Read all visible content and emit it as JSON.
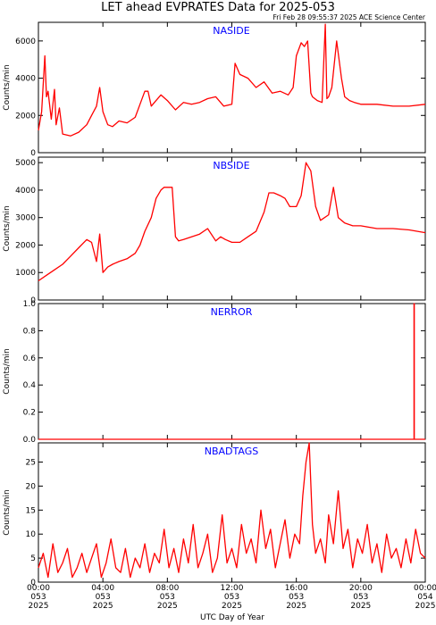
{
  "title": "LET ahead EVPRATES Data for 2025-053",
  "timestamp": "Fri Feb 28 09:55:37 2025 ACE Science Center",
  "xlabel": "UTC Day of Year",
  "x_ticks": [
    {
      "t": 0,
      "line1": "00:00",
      "line2": "053",
      "line3": "2025"
    },
    {
      "t": 4,
      "line1": "04:00",
      "line2": "053",
      "line3": "2025"
    },
    {
      "t": 8,
      "line1": "08:00",
      "line2": "053",
      "line3": "2025"
    },
    {
      "t": 12,
      "line1": "12:00",
      "line2": "053",
      "line3": "2025"
    },
    {
      "t": 16,
      "line1": "16:00",
      "line2": "053",
      "line3": "2025"
    },
    {
      "t": 20,
      "line1": "20:00",
      "line2": "053",
      "line3": "2025"
    },
    {
      "t": 24,
      "line1": "00:00",
      "line2": "054",
      "line3": "2025"
    }
  ],
  "colors": {
    "series": "#ff0000",
    "label": "#0000ff",
    "axis": "#000000"
  },
  "chart_data": [
    {
      "type": "line",
      "title": "NASIDE",
      "ylabel": "Counts/min",
      "xlim": [
        0,
        24
      ],
      "ylim": [
        0,
        7000
      ],
      "yticks": [
        0,
        2000,
        4000,
        6000
      ],
      "series": [
        {
          "x": [
            0,
            0.2,
            0.4,
            0.5,
            0.6,
            0.8,
            1.0,
            1.1,
            1.3,
            1.5,
            2.0,
            2.5,
            3.0,
            3.3,
            3.6,
            3.8,
            4.0,
            4.3,
            4.6,
            5.0,
            5.5,
            6.0,
            6.3,
            6.6,
            6.8,
            7.0,
            7.3,
            7.6,
            8.0,
            8.5,
            9.0,
            9.5,
            10.0,
            10.5,
            11.0,
            11.5,
            12.0,
            12.2,
            12.5,
            13.0,
            13.5,
            14.0,
            14.5,
            15.0,
            15.5,
            15.8,
            16.0,
            16.3,
            16.5,
            16.7,
            16.9,
            17.0,
            17.3,
            17.6,
            17.8,
            17.9,
            18.0,
            18.2,
            18.5,
            18.8,
            19.0,
            19.3,
            19.6,
            20.0,
            21.0,
            22.0,
            23.0,
            24.0
          ],
          "y": [
            1200,
            2200,
            5200,
            3000,
            3300,
            1800,
            3400,
            1500,
            2400,
            1000,
            900,
            1100,
            1500,
            2000,
            2500,
            3500,
            2200,
            1500,
            1400,
            1700,
            1600,
            1900,
            2600,
            3300,
            3300,
            2500,
            2800,
            3100,
            2800,
            2300,
            2700,
            2600,
            2700,
            2900,
            3000,
            2500,
            2600,
            4800,
            4200,
            4000,
            3500,
            3800,
            3200,
            3300,
            3100,
            3500,
            5200,
            5900,
            5700,
            6000,
            3200,
            3000,
            2800,
            2700,
            6900,
            2900,
            3000,
            3500,
            6000,
            4000,
            3000,
            2800,
            2700,
            2600,
            2600,
            2500,
            2500,
            2600
          ]
        }
      ]
    },
    {
      "type": "line",
      "title": "NBSIDE",
      "ylabel": "Counts/min",
      "xlim": [
        0,
        24
      ],
      "ylim": [
        0,
        5200
      ],
      "yticks": [
        0,
        1000,
        2000,
        3000,
        4000,
        5000
      ],
      "series": [
        {
          "x": [
            0,
            0.5,
            1.0,
            1.5,
            2.0,
            2.5,
            3.0,
            3.3,
            3.6,
            3.8,
            4.0,
            4.3,
            4.6,
            5.0,
            5.5,
            6.0,
            6.3,
            6.6,
            7.0,
            7.3,
            7.6,
            7.8,
            8.0,
            8.3,
            8.5,
            8.7,
            9.0,
            9.5,
            10.0,
            10.5,
            11.0,
            11.3,
            11.6,
            12.0,
            12.5,
            13.0,
            13.5,
            14.0,
            14.3,
            14.6,
            15.0,
            15.3,
            15.6,
            16.0,
            16.3,
            16.6,
            16.9,
            17.2,
            17.5,
            18.0,
            18.3,
            18.6,
            19.0,
            19.5,
            20.0,
            21.0,
            22.0,
            23.0,
            24.0
          ],
          "y": [
            700,
            900,
            1100,
            1300,
            1600,
            1900,
            2200,
            2100,
            1400,
            2400,
            1000,
            1200,
            1300,
            1400,
            1500,
            1700,
            2000,
            2500,
            3000,
            3700,
            4000,
            4100,
            4100,
            4100,
            2300,
            2150,
            2200,
            2300,
            2400,
            2600,
            2150,
            2300,
            2200,
            2100,
            2100,
            2300,
            2500,
            3200,
            3900,
            3900,
            3800,
            3700,
            3400,
            3400,
            3800,
            5000,
            4700,
            3400,
            2900,
            3100,
            4100,
            3000,
            2800,
            2700,
            2700,
            2600,
            2600,
            2550,
            2450
          ]
        }
      ]
    },
    {
      "type": "line",
      "title": "NERROR",
      "ylabel": "Counts/min",
      "xlim": [
        0,
        24
      ],
      "ylim": [
        0,
        1.0
      ],
      "yticks": [
        0.0,
        0.2,
        0.4,
        0.6,
        0.8,
        1.0
      ],
      "tick_labels": [
        "0.0",
        "0.2",
        "0.4",
        "0.6",
        "0.8",
        "1.0"
      ],
      "series": [
        {
          "x": [
            0,
            23.3,
            23.3,
            23.32,
            23.32,
            24
          ],
          "y": [
            0,
            0,
            1.0,
            1.0,
            0,
            0
          ]
        }
      ]
    },
    {
      "type": "line",
      "title": "NBADTAGS",
      "ylabel": "Counts/min",
      "xlim": [
        0,
        24
      ],
      "ylim": [
        0,
        29
      ],
      "yticks": [
        0,
        5,
        10,
        15,
        20,
        25
      ],
      "series": [
        {
          "x": [
            0,
            0.3,
            0.6,
            0.9,
            1.2,
            1.5,
            1.8,
            2.1,
            2.4,
            2.7,
            3.0,
            3.3,
            3.6,
            3.9,
            4.2,
            4.5,
            4.8,
            5.1,
            5.4,
            5.7,
            6.0,
            6.3,
            6.6,
            6.9,
            7.2,
            7.5,
            7.8,
            8.1,
            8.4,
            8.7,
            9.0,
            9.3,
            9.6,
            9.9,
            10.2,
            10.5,
            10.8,
            11.1,
            11.4,
            11.7,
            12.0,
            12.3,
            12.6,
            12.9,
            13.2,
            13.5,
            13.8,
            14.1,
            14.4,
            14.7,
            15.0,
            15.3,
            15.6,
            15.9,
            16.2,
            16.4,
            16.6,
            16.8,
            17.0,
            17.2,
            17.5,
            17.8,
            18.0,
            18.3,
            18.6,
            18.9,
            19.2,
            19.5,
            19.8,
            20.1,
            20.4,
            20.7,
            21.0,
            21.3,
            21.6,
            21.9,
            22.2,
            22.5,
            22.8,
            23.1,
            23.4,
            23.7,
            24.0
          ],
          "y": [
            3,
            6,
            1,
            8,
            2,
            4,
            7,
            1,
            3,
            6,
            2,
            5,
            8,
            1,
            4,
            9,
            3,
            2,
            7,
            1,
            5,
            3,
            8,
            2,
            6,
            4,
            11,
            3,
            7,
            2,
            9,
            4,
            12,
            3,
            6,
            10,
            2,
            5,
            14,
            4,
            7,
            3,
            12,
            6,
            9,
            4,
            15,
            7,
            11,
            3,
            8,
            13,
            5,
            10,
            8,
            18,
            25,
            29,
            12,
            6,
            9,
            4,
            14,
            8,
            19,
            7,
            11,
            3,
            9,
            6,
            12,
            4,
            8,
            2,
            10,
            5,
            7,
            3,
            9,
            4,
            11,
            6,
            5
          ]
        }
      ]
    }
  ]
}
